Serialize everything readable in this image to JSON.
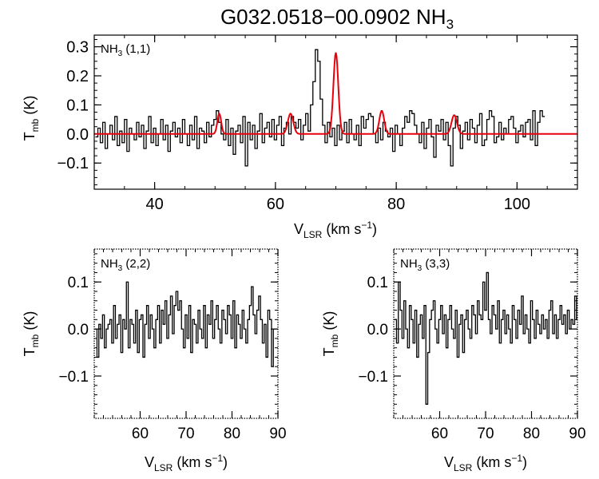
{
  "title": {
    "main": "G032.0518−00.0902 NH",
    "sub": "3"
  },
  "colors": {
    "data": "#000000",
    "fit": "#e8000b",
    "axis": "#000000",
    "background": "#ffffff"
  },
  "chart_data": [
    {
      "type": "line",
      "name": "NH3 (1,1)",
      "label": {
        "main": "NH",
        "sub": "3",
        "rest": " (1,1)"
      },
      "xlabel": {
        "main": "V",
        "sub": "LSR",
        "unit": " (km s",
        "sup": "−1",
        "close": ")"
      },
      "ylabel": {
        "main": "T",
        "sub": "mb",
        "unit": " (K)"
      },
      "xlim": [
        30,
        110
      ],
      "ylim": [
        -0.19,
        0.34
      ],
      "xticks": [
        40,
        60,
        80,
        100
      ],
      "xtick_labels": [
        "40",
        "60",
        "80",
        "100"
      ],
      "yticks": [
        -0.1,
        0.0,
        0.1,
        0.2,
        0.3
      ],
      "ytick_labels": [
        "−0.1",
        "0.0",
        "0.1",
        "0.2",
        "0.3"
      ],
      "x_minor_step": 5,
      "y_minor_step": 0.025,
      "series": [
        {
          "name": "observed spectrum",
          "style": "step",
          "x0": 30.2,
          "dx": 0.4,
          "values": [
            -0.01,
            0.02,
            -0.03,
            0.04,
            -0.05,
            0.0,
            0.03,
            -0.02,
            0.06,
            -0.04,
            0.01,
            -0.03,
            0.05,
            -0.06,
            0.02,
            0.0,
            -0.02,
            0.04,
            -0.01,
            0.03,
            -0.05,
            0.01,
            0.06,
            -0.03,
            0.02,
            -0.04,
            0.0,
            0.05,
            -0.02,
            0.03,
            -0.06,
            0.01,
            0.04,
            -0.01,
            0.02,
            -0.03,
            0.05,
            0.0,
            -0.04,
            0.03,
            -0.02,
            0.06,
            -0.05,
            0.02,
            0.01,
            -0.03,
            0.04,
            -0.01,
            0.03,
            0.05,
            0.08,
            0.04,
            0.0,
            -0.02,
            0.05,
            -0.04,
            0.02,
            -0.07,
            0.01,
            0.03,
            -0.03,
            0.06,
            -0.11,
            0.04,
            -0.02,
            0.03,
            -0.05,
            0.01,
            0.07,
            -0.03,
            0.02,
            0.04,
            -0.01,
            0.05,
            -0.02,
            0.03,
            0.06,
            -0.04,
            0.02,
            0.04,
            0.0,
            0.06,
            0.04,
            0.02,
            0.05,
            -0.02,
            0.03,
            0.07,
            0.01,
            0.1,
            0.18,
            0.29,
            0.25,
            0.12,
            0.03,
            -0.03,
            0.04,
            -0.01,
            0.02,
            -0.04,
            0.03,
            -0.02,
            0.01,
            0.04,
            -0.03,
            0.05,
            0.0,
            -0.02,
            0.03,
            -0.04,
            0.06,
            0.02,
            0.05,
            0.07,
            0.06,
            0.0,
            -0.03,
            0.02,
            -0.02,
            0.04,
            0.01,
            -0.01,
            0.02,
            -0.06,
            0.03,
            0.0,
            -0.04,
            0.02,
            0.06,
            0.04,
            0.08,
            0.07,
            0.03,
            0.0,
            -0.03,
            0.04,
            -0.05,
            0.02,
            0.05,
            -0.01,
            -0.08,
            0.03,
            0.01,
            0.05,
            -0.02,
            0.04,
            -0.04,
            -0.11,
            0.02,
            0.06,
            0.03,
            -0.05,
            0.01,
            0.04,
            -0.02,
            0.05,
            0.02,
            -0.03,
            0.03,
            0.07,
            -0.04,
            -0.02,
            0.05,
            0.08,
            0.06,
            -0.03,
            -0.01,
            0.04,
            -0.02,
            0.02,
            0.0,
            0.05,
            0.06,
            0.02,
            -0.03,
            0.01,
            0.03,
            -0.01,
            0.04,
            0.05,
            -0.02,
            0.08,
            -0.04,
            0.04,
            0.08,
            0.06
          ]
        },
        {
          "name": "hyperfine fit",
          "style": "line",
          "baseline": 0.0,
          "components": [
            {
              "center": 50.7,
              "amplitude": 0.07,
              "sigma": 0.32
            },
            {
              "center": 62.5,
              "amplitude": 0.07,
              "sigma": 0.45
            },
            {
              "center": 70.0,
              "amplitude": 0.28,
              "sigma": 0.4
            },
            {
              "center": 77.6,
              "amplitude": 0.08,
              "sigma": 0.4
            },
            {
              "center": 89.6,
              "amplitude": 0.065,
              "sigma": 0.45
            }
          ]
        }
      ]
    },
    {
      "type": "line",
      "name": "NH3 (2,2)",
      "label": {
        "main": "NH",
        "sub": "3",
        "rest": " (2,2)"
      },
      "xlabel": {
        "main": "V",
        "sub": "LSR",
        "unit": " (km s",
        "sup": "−1",
        "close": ")"
      },
      "ylabel": {
        "main": "T",
        "sub": "mb",
        "unit": " (K)"
      },
      "xlim": [
        50,
        90
      ],
      "ylim": [
        -0.19,
        0.17
      ],
      "xticks": [
        60,
        70,
        80,
        90
      ],
      "xtick_labels": [
        "60",
        "70",
        "80",
        "90"
      ],
      "yticks": [
        -0.1,
        0.0,
        0.1
      ],
      "ytick_labels": [
        "−0.1",
        "0.0",
        "0.1"
      ],
      "x_minor_step": 2,
      "y_minor_step": 0.02,
      "series": [
        {
          "name": "observed spectrum",
          "style": "step",
          "x0": 50.2,
          "dx": 0.4,
          "values": [
            0.0,
            -0.06,
            0.01,
            -0.02,
            0.03,
            -0.04,
            0.0,
            0.01,
            0.02,
            -0.03,
            0.05,
            -0.02,
            0.01,
            0.03,
            -0.05,
            0.02,
            0.0,
            0.1,
            -0.04,
            0.02,
            0.01,
            -0.03,
            0.04,
            -0.05,
            0.02,
            0.03,
            -0.06,
            0.01,
            0.05,
            -0.02,
            0.03,
            0.0,
            -0.04,
            0.02,
            0.05,
            -0.03,
            0.04,
            0.01,
            0.06,
            -0.02,
            0.03,
            0.07,
            -0.01,
            0.05,
            0.08,
            0.04,
            0.06,
            0.0,
            -0.04,
            0.03,
            -0.02,
            0.05,
            -0.05,
            0.02,
            0.01,
            -0.03,
            0.04,
            0.0,
            -0.02,
            0.05,
            -0.04,
            0.03,
            0.01,
            0.06,
            -0.02,
            0.02,
            0.05,
            0.0,
            -0.03,
            0.04,
            0.02,
            -0.01,
            0.05,
            0.03,
            -0.02,
            0.06,
            -0.04,
            0.03,
            0.01,
            -0.02,
            0.04,
            0.0,
            -0.03,
            0.02,
            0.05,
            0.09,
            0.03,
            -0.01,
            0.04,
            0.07,
            0.02,
            -0.03,
            0.01,
            -0.06,
            0.04,
            0.02,
            -0.08,
            0.0
          ]
        }
      ]
    },
    {
      "type": "line",
      "name": "NH3 (3,3)",
      "label": {
        "main": "NH",
        "sub": "3",
        "rest": " (3,3)"
      },
      "xlabel": {
        "main": "V",
        "sub": "LSR",
        "unit": " (km s",
        "sup": "−1",
        "close": ")"
      },
      "ylabel": {
        "main": "T",
        "sub": "mb",
        "unit": " (K)"
      },
      "xlim": [
        50,
        90
      ],
      "ylim": [
        -0.19,
        0.17
      ],
      "xticks": [
        60,
        70,
        80,
        90
      ],
      "xtick_labels": [
        "60",
        "70",
        "80",
        "90"
      ],
      "yticks": [
        -0.1,
        0.0,
        0.1
      ],
      "ytick_labels": [
        "−0.1",
        "0.0",
        "0.1"
      ],
      "x_minor_step": 2,
      "y_minor_step": 0.02,
      "series": [
        {
          "name": "observed spectrum",
          "style": "step",
          "x0": 50.2,
          "dx": 0.4,
          "values": [
            0.02,
            -0.03,
            0.1,
            0.04,
            -0.02,
            0.06,
            0.0,
            -0.04,
            0.05,
            0.02,
            -0.03,
            0.04,
            -0.06,
            0.01,
            0.03,
            -0.02,
            0.05,
            -0.16,
            -0.05,
            0.02,
            0.04,
            0.06,
            0.0,
            -0.03,
            0.02,
            0.05,
            -0.01,
            0.03,
            -0.04,
            0.02,
            0.05,
            0.0,
            -0.02,
            0.04,
            -0.06,
            0.01,
            0.03,
            -0.05,
            0.02,
            0.04,
            0.0,
            -0.02,
            0.05,
            0.03,
            -0.01,
            0.06,
            0.03,
            0.02,
            0.1,
            0.04,
            0.12,
            0.02,
            -0.01,
            0.05,
            0.03,
            0.0,
            0.06,
            -0.03,
            0.02,
            0.04,
            -0.01,
            0.03,
            0.0,
            -0.03,
            0.05,
            0.02,
            -0.02,
            0.04,
            0.01,
            0.07,
            -0.01,
            0.03,
            0.0,
            -0.03,
            0.06,
            0.02,
            -0.02,
            0.04,
            0.01,
            -0.01,
            0.03,
            0.0,
            0.02,
            -0.02,
            0.04,
            0.06,
            -0.01,
            0.03,
            -0.02,
            0.02,
            0.05,
            0.01,
            0.03,
            -0.01,
            0.04,
            0.0,
            0.02,
            0.01,
            0.07,
            0.02
          ]
        }
      ]
    }
  ]
}
